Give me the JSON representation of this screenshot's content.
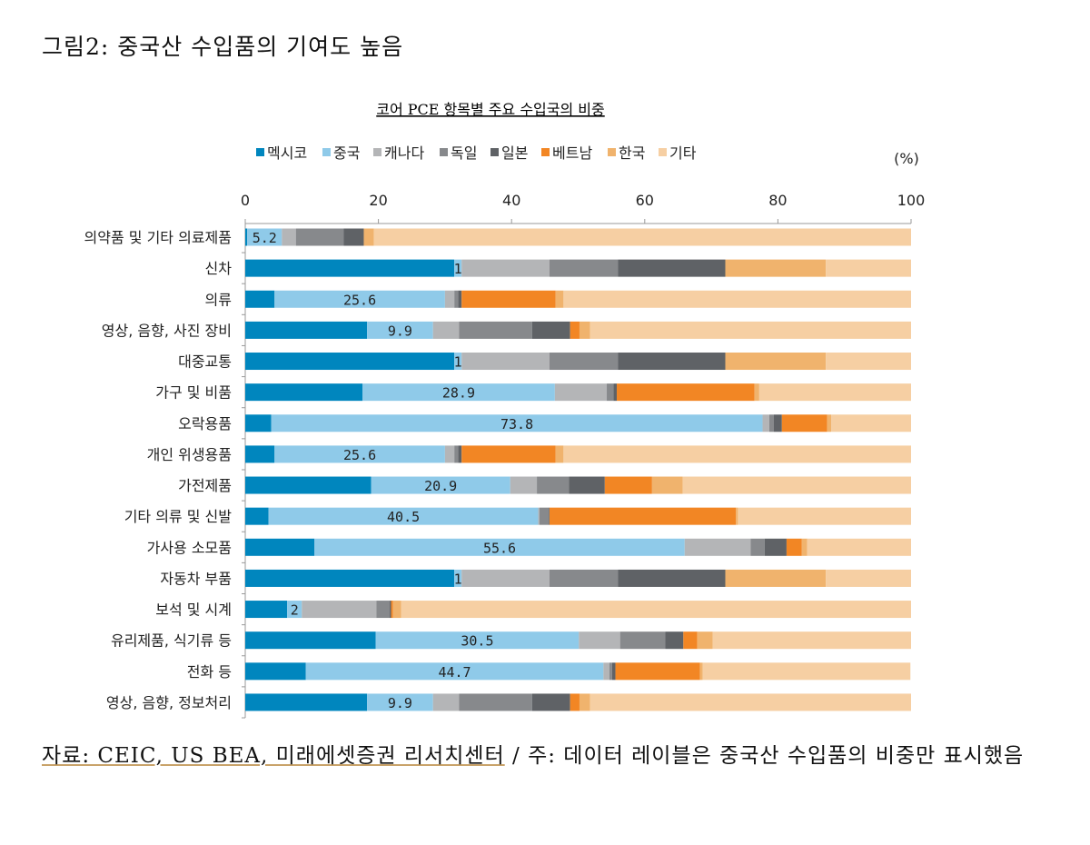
{
  "figure_title": "그림2: 중국산 수입품의 기여도 높음",
  "footer": {
    "source": "자료: CEIC, US BEA, 미래에셋증권 리서치센터",
    "note": " / 주: 데이터 레이블은 중국산 수입품의 비중만 표시했음"
  },
  "chart_data": {
    "type": "bar",
    "orientation": "horizontal-stacked",
    "title": "코어 PCE 항목별 주요 수입국의 비중",
    "unit_label": "(%)",
    "xlim": [
      0,
      100
    ],
    "x_ticks": [
      "0",
      "20",
      "40",
      "60",
      "80",
      "100"
    ],
    "legend_position": "top",
    "categories": [
      "의약품 및 기타 의료제품",
      "신차",
      "의류",
      "영상, 음향, 사진 장비",
      "대중교통",
      "가구 및 비품",
      "오락용품",
      "개인 위생용품",
      "가전제품",
      "기타 의류 및 신발",
      "가사용 소모품",
      "자동차 부품",
      "보석 및 시계",
      "유리제품, 식기류 등",
      "전화 등",
      "영상, 음향, 정보처리"
    ],
    "data_labels": [
      "5.2",
      "1",
      "25.6",
      "9.9",
      "1",
      "28.9",
      "73.8",
      "25.6",
      "20.9",
      "40.5",
      "55.6",
      "1",
      "2",
      "30.5",
      "44.7",
      "9.9"
    ],
    "series": [
      {
        "name": "멕시코",
        "color": "#0086BE",
        "values": [
          0.3,
          31.4,
          4.4,
          18.3,
          31.4,
          17.6,
          3.9,
          4.4,
          18.9,
          3.5,
          10.4,
          31.4,
          6.3,
          19.6,
          9.1,
          18.3
        ]
      },
      {
        "name": "중국",
        "color": "#8FCAE9",
        "values": [
          5.2,
          1.1,
          25.6,
          9.9,
          1.1,
          28.9,
          73.8,
          25.6,
          20.9,
          40.5,
          55.6,
          1.1,
          2.2,
          30.5,
          44.7,
          9.9
        ]
      },
      {
        "name": "캐나다",
        "color": "#B4B5B7",
        "values": [
          2.1,
          13.2,
          1.4,
          3.9,
          13.2,
          7.8,
          1.0,
          1.4,
          4.0,
          0.2,
          9.9,
          13.2,
          11.2,
          6.2,
          0.9,
          3.9
        ]
      },
      {
        "name": "독일",
        "color": "#87898C",
        "values": [
          7.2,
          10.3,
          0.6,
          11.0,
          10.3,
          1.0,
          0.7,
          0.6,
          4.8,
          1.4,
          2.1,
          10.3,
          2.0,
          6.8,
          0.4,
          11.0
        ]
      },
      {
        "name": "일본",
        "color": "#5F6266",
        "values": [
          3.0,
          16.1,
          0.5,
          5.7,
          16.1,
          0.5,
          1.2,
          0.5,
          5.4,
          0.1,
          3.3,
          16.1,
          0.2,
          2.7,
          0.5,
          5.7
        ]
      },
      {
        "name": "베트남",
        "color": "#F28624",
        "values": [
          0,
          0,
          14.1,
          1.4,
          0,
          20.7,
          6.8,
          14.1,
          7.1,
          28.0,
          2.3,
          0,
          0.3,
          2.1,
          12.7,
          1.4
        ]
      },
      {
        "name": "한국",
        "color": "#F0B36D",
        "values": [
          1.5,
          15.1,
          1.2,
          1.6,
          15.1,
          0.7,
          0.6,
          1.2,
          4.6,
          0.3,
          0.8,
          15.1,
          1.2,
          2.3,
          0.4,
          1.6
        ]
      },
      {
        "name": "기타",
        "color": "#F6CFA3",
        "values": [
          80.7,
          12.8,
          52.2,
          48.2,
          12.8,
          22.8,
          12.0,
          52.2,
          34.3,
          26.0,
          15.6,
          12.8,
          76.6,
          29.8,
          31.2,
          48.2
        ]
      }
    ]
  }
}
